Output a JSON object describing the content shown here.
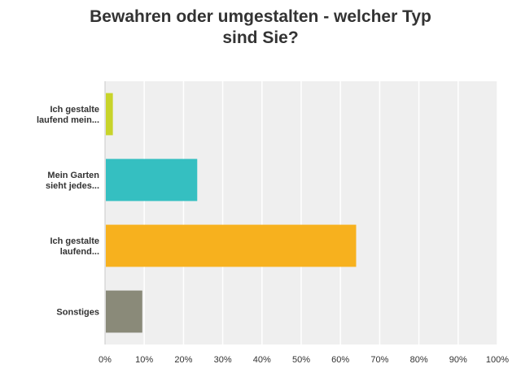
{
  "chart_data": {
    "type": "bar",
    "orientation": "horizontal",
    "title_lines": [
      "Bewahren oder umgestalten - welcher Typ",
      "sind Sie?"
    ],
    "categories": [
      {
        "lines": [
          "Ich gestalte",
          "laufend mein..."
        ]
      },
      {
        "lines": [
          "Mein Garten",
          "sieht jedes..."
        ]
      },
      {
        "lines": [
          "Ich gestalte",
          "laufend..."
        ]
      },
      {
        "lines": [
          "Sonstiges"
        ]
      }
    ],
    "values": [
      2,
      23.5,
      64,
      9.5
    ],
    "colors": [
      "#c8d42a",
      "#35bfc1",
      "#f7b11e",
      "#8a8a79"
    ],
    "xlim": [
      0,
      100
    ],
    "ticks": [
      0,
      10,
      20,
      30,
      40,
      50,
      60,
      70,
      80,
      90,
      100
    ],
    "tick_labels": [
      "0%",
      "10%",
      "20%",
      "30%",
      "40%",
      "50%",
      "60%",
      "70%",
      "80%",
      "90%",
      "100%"
    ],
    "grid": true,
    "legend": "none"
  }
}
